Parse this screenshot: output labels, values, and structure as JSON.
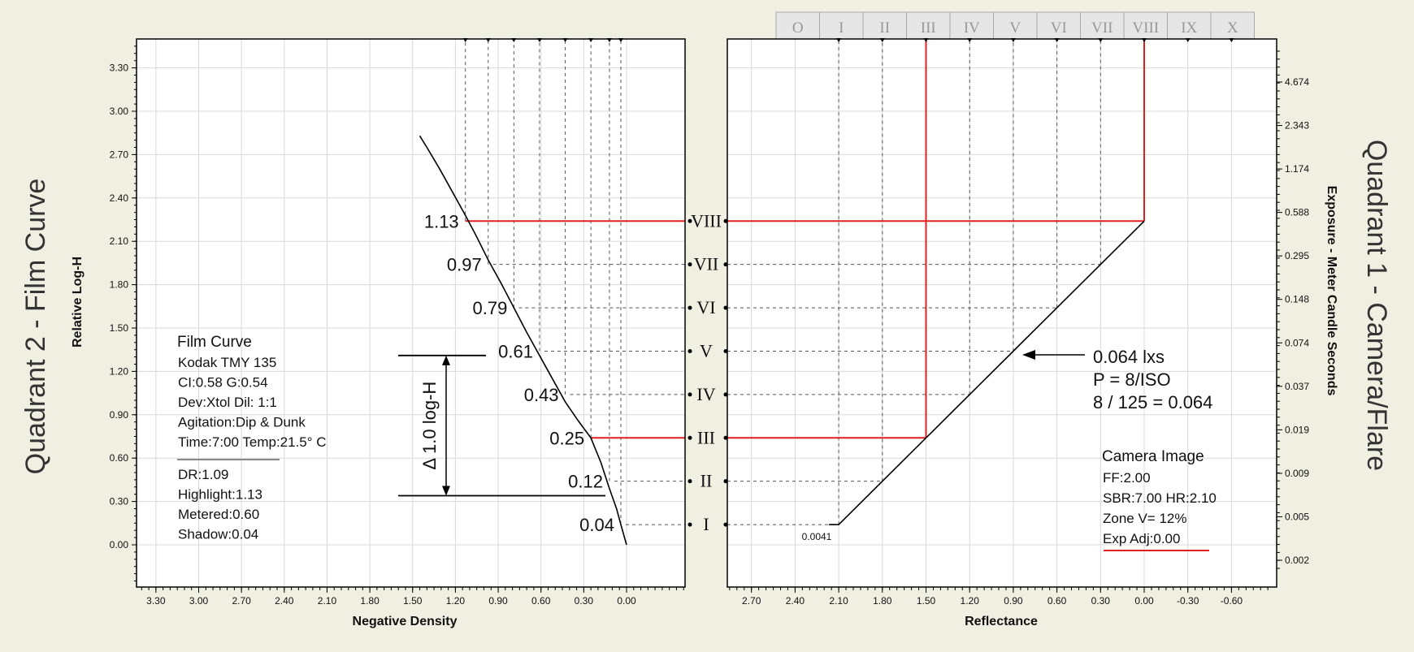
{
  "colors": {
    "background": "#efefe2",
    "plot": "#ffffff",
    "grid": "#d8d8d8",
    "guide": "#555555",
    "highlight": "#e02020",
    "curve": "#000000"
  },
  "quadrant_titles": {
    "left": "Quadrant 2 - Film Curve",
    "right": "Quadrant 1 - Camera/Flare"
  },
  "zone_tabs": [
    "O",
    "I",
    "II",
    "III",
    "IV",
    "V",
    "VI",
    "VII",
    "VIII",
    "IX",
    "X"
  ],
  "film_info": {
    "title": "Film Curve",
    "lines": [
      "Kodak TMY 135",
      "CI:0.58  G:0.54",
      "Dev:Xtol  Dil: 1:1",
      "Agitation:Dip & Dunk",
      "Time:7:00  Temp:21.5° C"
    ],
    "stats": [
      "DR:1.09",
      "Highlight:1.13",
      "Metered:0.60",
      "Shadow:0.04"
    ]
  },
  "camera_info": {
    "title": "Camera Image",
    "lines": [
      "FF:2.00",
      "SBR:7.00  HR:2.10",
      "Zone V= 12%",
      "Exp Adj:0.00"
    ]
  },
  "exposure_note": [
    "0.064 lxs",
    "P = 8/ISO",
    "8 / 125 = 0.064"
  ],
  "delta_label": "Δ 1.0 log-H",
  "min_reflectance_label": "0.0041",
  "chart_data": [
    {
      "type": "line",
      "title": "Quadrant 2 - Film Curve",
      "xlabel": "Negative Density",
      "ylabel": "Relative Log-H",
      "x_reversed": true,
      "xlim": [
        3.3,
        0.0
      ],
      "ylim": [
        -0.3,
        3.5
      ],
      "xticks": [
        "3.30",
        "3.00",
        "2.70",
        "2.40",
        "2.10",
        "1.80",
        "1.50",
        "1.20",
        "0.90",
        "0.60",
        "0.30",
        "0.00"
      ],
      "yticks": [
        "0.00",
        "0.30",
        "0.60",
        "0.90",
        "1.20",
        "1.50",
        "1.80",
        "2.10",
        "2.40",
        "2.70",
        "3.00",
        "3.30"
      ],
      "grid": true,
      "series": [
        {
          "x": [
            0.0,
            0.02,
            0.04,
            0.07,
            0.12,
            0.18,
            0.25,
            0.34,
            0.43,
            0.52,
            0.61,
            0.7,
            0.79,
            0.88,
            0.97,
            1.05,
            1.13,
            1.22,
            1.31,
            1.4,
            1.45
          ],
          "y": [
            0.0,
            0.07,
            0.14,
            0.25,
            0.39,
            0.57,
            0.74,
            0.86,
            0.99,
            1.15,
            1.31,
            1.47,
            1.64,
            1.81,
            1.97,
            2.13,
            2.28,
            2.44,
            2.6,
            2.75,
            2.83
          ]
        }
      ],
      "zone_marks": [
        {
          "zone": "I",
          "density": "0.04",
          "log_h": 0.14
        },
        {
          "zone": "II",
          "density": "0.12",
          "log_h": 0.44
        },
        {
          "zone": "III",
          "density": "0.25",
          "log_h": 0.74
        },
        {
          "zone": "IV",
          "density": "0.43",
          "log_h": 1.04
        },
        {
          "zone": "V",
          "density": "0.61",
          "log_h": 1.34
        },
        {
          "zone": "VI",
          "density": "0.79",
          "log_h": 1.64
        },
        {
          "zone": "VII",
          "density": "0.97",
          "log_h": 1.94
        },
        {
          "zone": "VIII",
          "density": "1.13",
          "log_h": 2.24
        }
      ],
      "highlighted_zones": [
        "III",
        "VIII"
      ],
      "delta_range": [
        0.34,
        1.31
      ]
    },
    {
      "type": "line",
      "title": "Quadrant 1 - Camera/Flare",
      "xlabel": "Reflectance",
      "ylabel": "Exposure - Meter Candle Seconds",
      "x_reversed": true,
      "xlim": [
        3.0,
        -0.9
      ],
      "xticks": [
        "2.70",
        "2.40",
        "2.10",
        "1.80",
        "1.50",
        "1.20",
        "0.90",
        "0.60",
        "0.30",
        "0.00",
        "-0.30",
        "-0.60"
      ],
      "right_ticks": [
        "0.002",
        "0.005",
        "0.009",
        "0.019",
        "0.037",
        "0.074",
        "0.148",
        "0.295",
        "0.588",
        "1.174",
        "2.343",
        "4.674"
      ],
      "grid": true,
      "series": [
        {
          "x": [
            2.1,
            1.8,
            1.5,
            1.2,
            0.9,
            0.6,
            0.3,
            0.0
          ],
          "y": [
            0.14,
            0.44,
            0.74,
            1.04,
            1.34,
            1.64,
            1.94,
            2.24
          ]
        }
      ],
      "zone_marks": [
        {
          "zone": "I",
          "reflectance": 2.1
        },
        {
          "zone": "II",
          "reflectance": 1.8
        },
        {
          "zone": "III",
          "reflectance": 1.5
        },
        {
          "zone": "IV",
          "reflectance": 1.2
        },
        {
          "zone": "V",
          "reflectance": 0.9
        },
        {
          "zone": "VI",
          "reflectance": 0.6
        },
        {
          "zone": "VII",
          "reflectance": 0.3
        },
        {
          "zone": "VIII",
          "reflectance": 0.0
        }
      ],
      "highlighted_zones": [
        "III",
        "VIII"
      ]
    }
  ]
}
